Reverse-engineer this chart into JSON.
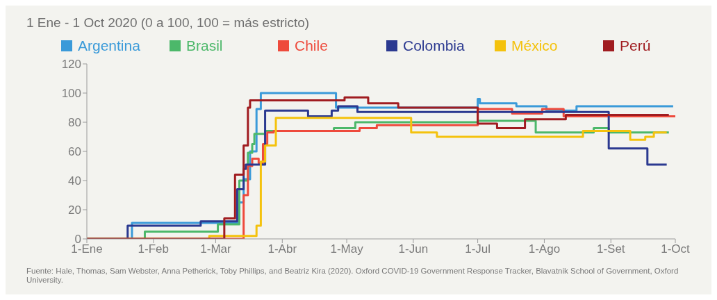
{
  "chart_data": {
    "type": "step",
    "title": "1 Ene - 1 Oct 2020 (0 a 100, 100 = más estricto)",
    "annotations": [
      "Fuente: Hale, Thomas, Sam Webster, Anna Petherick, Toby Phillips, and Beatriz Kira (2020). Oxford COVID-19 Government Response Tracker, Blavatnik School of Government, Oxford University."
    ],
    "legend": "top",
    "xlim": [
      "2020-01-01",
      "2020-10-01"
    ],
    "xticks": [
      {
        "value": "2020-01-01",
        "label": "1-Ene"
      },
      {
        "value": "2020-02-01",
        "label": "1-Feb"
      },
      {
        "value": "2020-03-01",
        "label": "1-Mar"
      },
      {
        "value": "2020-04-01",
        "label": "1-Abr"
      },
      {
        "value": "2020-05-01",
        "label": "1-May"
      },
      {
        "value": "2020-06-01",
        "label": "1-Jun"
      },
      {
        "value": "2020-07-01",
        "label": "1-Jul"
      },
      {
        "value": "2020-08-01",
        "label": "1-Ago"
      },
      {
        "value": "2020-09-01",
        "label": "1-Set"
      },
      {
        "value": "2020-10-01",
        "label": "1-Oct"
      }
    ],
    "ylim": [
      0,
      120
    ],
    "yticks": [
      0,
      20,
      40,
      60,
      80,
      100,
      120
    ],
    "series": [
      {
        "name": "Argentina",
        "color": "#3a9ad9",
        "x": [
          "2020-01-01",
          "2020-01-22",
          "2020-03-12",
          "2020-03-14",
          "2020-03-17",
          "2020-03-20",
          "2020-03-22",
          "2020-04-26",
          "2020-07-01",
          "2020-07-02",
          "2020-07-19",
          "2020-08-02",
          "2020-08-16",
          "2020-09-30"
        ],
        "values": [
          0,
          11,
          25,
          41,
          60,
          89,
          100,
          90,
          96,
          93,
          91,
          88,
          91,
          91
        ]
      },
      {
        "name": "Brasil",
        "color": "#4cb86a",
        "x": [
          "2020-01-01",
          "2020-01-28",
          "2020-03-02",
          "2020-03-12",
          "2020-03-16",
          "2020-03-18",
          "2020-03-19",
          "2020-03-24",
          "2020-04-25",
          "2020-05-05",
          "2020-07-01",
          "2020-07-28",
          "2020-08-24",
          "2020-08-31",
          "2020-09-28"
        ],
        "values": [
          0,
          5,
          10,
          40,
          59,
          65,
          72,
          74,
          76,
          80,
          81,
          73,
          76,
          73,
          73
        ]
      },
      {
        "name": "Chile",
        "color": "#ee4a3c",
        "x": [
          "2020-01-01",
          "2020-03-14",
          "2020-03-16",
          "2020-03-18",
          "2020-03-21",
          "2020-03-23",
          "2020-03-25",
          "2020-03-28",
          "2020-05-07",
          "2020-05-15",
          "2020-07-01",
          "2020-07-17",
          "2020-07-31",
          "2020-08-10",
          "2020-10-01"
        ],
        "values": [
          0,
          30,
          50,
          55,
          52,
          65,
          73,
          74,
          76,
          78,
          89,
          86,
          89,
          84,
          84
        ]
      },
      {
        "name": "Colombia",
        "color": "#2b3990",
        "x": [
          "2020-01-01",
          "2020-01-20",
          "2020-02-23",
          "2020-03-11",
          "2020-03-14",
          "2020-03-15",
          "2020-03-24",
          "2020-04-13",
          "2020-04-24",
          "2020-04-27",
          "2020-05-06",
          "2020-08-31",
          "2020-09-18",
          "2020-09-27"
        ],
        "values": [
          0,
          9,
          12,
          34,
          48,
          51,
          88,
          84,
          88,
          91,
          87,
          62,
          51,
          51
        ]
      },
      {
        "name": "México",
        "color": "#f4c20d",
        "x": [
          "2020-01-01",
          "2020-02-27",
          "2020-03-20",
          "2020-03-22",
          "2020-03-24",
          "2020-03-29",
          "2020-05-31",
          "2020-06-12",
          "2020-08-19",
          "2020-09-10",
          "2020-09-17",
          "2020-09-21",
          "2020-09-27"
        ],
        "values": [
          0,
          2,
          9,
          53,
          64,
          83,
          73,
          70,
          74,
          68,
          70,
          73,
          73
        ]
      },
      {
        "name": "Perú",
        "color": "#a01c20",
        "x": [
          "2020-01-01",
          "2020-03-05",
          "2020-03-10",
          "2020-03-14",
          "2020-03-16",
          "2020-03-17",
          "2020-04-30",
          "2020-05-11",
          "2020-05-25",
          "2020-07-01",
          "2020-07-10",
          "2020-07-23",
          "2020-08-11",
          "2020-09-28"
        ],
        "values": [
          0,
          14,
          44,
          64,
          90,
          95,
          97,
          93,
          90,
          79,
          76,
          82,
          85,
          85
        ]
      }
    ]
  }
}
